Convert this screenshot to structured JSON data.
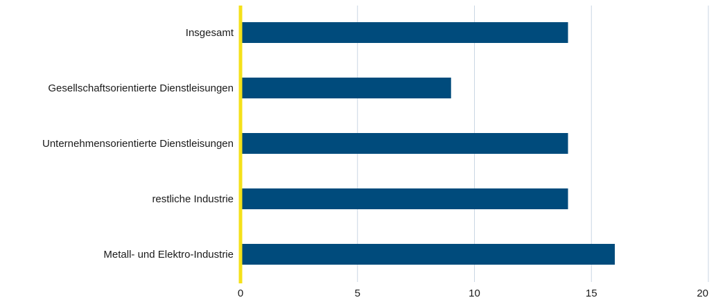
{
  "chart_data": {
    "type": "bar",
    "orientation": "horizontal",
    "categories": [
      "Insgesamt",
      "Gesellschaftsorientierte Dienstleisungen",
      "Unternehmensorientierte Dienstleisungen",
      "restliche Industrie",
      "Metall- und Elektro-Industrie"
    ],
    "values": [
      14,
      9,
      14,
      14,
      16
    ],
    "xlim": [
      0,
      20
    ],
    "xticks": [
      "0",
      "5",
      "10",
      "15",
      "20"
    ],
    "grid": "vertical",
    "legend": "none",
    "colors": {
      "bar": "#004b7c",
      "axis": "#f5e11a",
      "grid": "#c9d6e3"
    }
  }
}
